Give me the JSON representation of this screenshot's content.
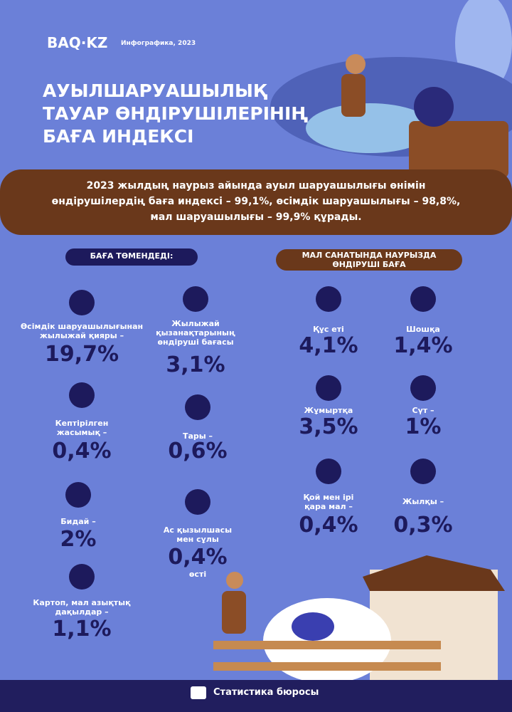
{
  "header": {
    "brand": "BAQ·KZ",
    "tag": "Инфографика, 2023",
    "title_lines": [
      "АУЫЛШАРУАШЫЛЫҚ",
      "ТАУАР ӨНДІРУШІЛЕРІНІҢ",
      "БАҒА ИНДЕКСІ"
    ]
  },
  "summary_lines": [
    "2023 жылдың наурыз айында ауыл шаруашылығы өнімін",
    "өндірушілердің баға индексі – 99,1%, өсімдік шаруашылығы – 98,8%,",
    "мал шаруашылығы – 99,9% құрады."
  ],
  "left": {
    "heading": "БАҒА ТӨМЕНДЕДІ:",
    "items": [
      {
        "label_lines": [
          "Өсімдік шаруашылығынан",
          "жылыжай қияры –"
        ],
        "value": "19,7%"
      },
      {
        "label_lines": [
          "Жылыжай",
          "қызанақтарының",
          "өндіруші бағасы"
        ],
        "value": "3,1%"
      },
      {
        "label_lines": [
          "Кептірілген",
          "жасымық –"
        ],
        "value": "0,4%"
      },
      {
        "label_lines": [
          "Тары –"
        ],
        "value": "0,6%"
      },
      {
        "label_lines": [
          "Бидай –"
        ],
        "value": "2%"
      },
      {
        "label_lines": [
          "Ас қызылшасы",
          "мен сұлы"
        ],
        "value": "0,4%",
        "suffix": "өсті"
      },
      {
        "label_lines": [
          "Картоп, мал азықтық",
          "дақылдар –"
        ],
        "value": "1,1%"
      }
    ]
  },
  "right": {
    "heading_lines": [
      "МАЛ САНАТЫНДА НАУРЫЗДА",
      "ӨНДІРУШІ БАҒА"
    ],
    "items": [
      {
        "label_lines": [
          "Құс еті"
        ],
        "value": "4,1%"
      },
      {
        "label_lines": [
          "Шошқа"
        ],
        "value": "1,4%"
      },
      {
        "label_lines": [
          "Жұмыртқа"
        ],
        "value": "3,5%"
      },
      {
        "label_lines": [
          "Сүт –"
        ],
        "value": "1%"
      },
      {
        "label_lines": [
          "Қой мен ірі",
          "қара мал –"
        ],
        "value": "0,4%"
      },
      {
        "label_lines": [
          "Жылқы –"
        ],
        "value": "0,3%"
      }
    ]
  },
  "footer": "Статистика бюросы"
}
